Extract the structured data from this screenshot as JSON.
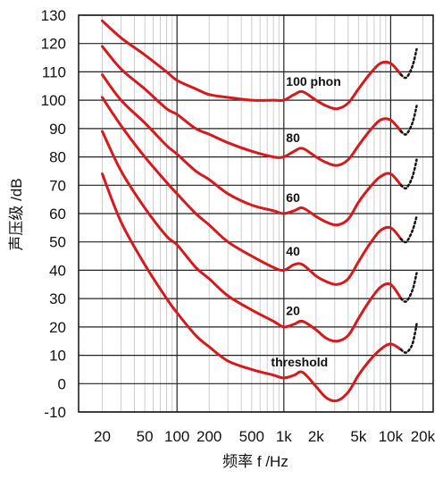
{
  "chart_data": {
    "type": "line",
    "title": "",
    "xlabel": "频率 f /Hz",
    "ylabel": "声压级 /dB",
    "x_scale": "log",
    "xlim": [
      12,
      25000
    ],
    "ylim": [
      -10,
      130
    ],
    "x_ticks": [
      {
        "value": 20,
        "label": "20"
      },
      {
        "value": 50,
        "label": "50"
      },
      {
        "value": 100,
        "label": "100"
      },
      {
        "value": 200,
        "label": "200"
      },
      {
        "value": 500,
        "label": "500"
      },
      {
        "value": 1000,
        "label": "1k"
      },
      {
        "value": 2000,
        "label": "2k"
      },
      {
        "value": 5000,
        "label": "5k"
      },
      {
        "value": 10000,
        "label": "10k"
      },
      {
        "value": 20000,
        "label": "20k"
      }
    ],
    "y_ticks": [
      -10,
      0,
      10,
      20,
      30,
      40,
      50,
      60,
      70,
      80,
      90,
      100,
      110,
      120,
      130
    ],
    "grid": true,
    "line_color": "#d7191c",
    "dotted_color": "#111111",
    "series": [
      {
        "name": "threshold",
        "x": [
          20,
          30,
          50,
          80,
          100,
          150,
          200,
          300,
          500,
          800,
          1000,
          1250,
          1500,
          2000,
          2500,
          3150,
          4000,
          5000,
          6300,
          8000,
          10000,
          12500
        ],
        "y": [
          74,
          57,
          42,
          30,
          25,
          17,
          13,
          8,
          5,
          3,
          2,
          3,
          4,
          -1,
          -5,
          -6,
          -3,
          3,
          8,
          12,
          14,
          12
        ]
      },
      {
        "name": "20",
        "x": [
          20,
          30,
          50,
          80,
          100,
          150,
          200,
          300,
          500,
          800,
          1000,
          1250,
          1500,
          2000,
          2500,
          3150,
          4000,
          5000,
          6300,
          8000,
          10000,
          12500
        ],
        "y": [
          89,
          75,
          62,
          52,
          49,
          41,
          37,
          31,
          26,
          22,
          20,
          21,
          22,
          19,
          16,
          15,
          17,
          23,
          29,
          34,
          35,
          30
        ]
      },
      {
        "name": "40",
        "x": [
          20,
          30,
          50,
          80,
          100,
          150,
          200,
          300,
          500,
          800,
          1000,
          1250,
          1500,
          2000,
          2500,
          3150,
          4000,
          5000,
          6300,
          8000,
          10000,
          12500
        ],
        "y": [
          101,
          91,
          80,
          71,
          67,
          60,
          56,
          50,
          45,
          41,
          40,
          42,
          42,
          38,
          36,
          35,
          37,
          43,
          49,
          54,
          55,
          51
        ]
      },
      {
        "name": "60",
        "x": [
          20,
          30,
          50,
          80,
          100,
          150,
          200,
          300,
          500,
          800,
          1000,
          1250,
          1500,
          2000,
          2500,
          3150,
          4000,
          5000,
          6300,
          8000,
          10000,
          12500
        ],
        "y": [
          109,
          100,
          92,
          84,
          81,
          75,
          72,
          67,
          63,
          61,
          60,
          61,
          62,
          59,
          57,
          56,
          58,
          64,
          69,
          73,
          74,
          70
        ]
      },
      {
        "name": "80",
        "x": [
          20,
          30,
          50,
          80,
          100,
          150,
          200,
          300,
          500,
          800,
          1000,
          1250,
          1500,
          2000,
          2500,
          3150,
          4000,
          5000,
          6300,
          8000,
          10000,
          12500
        ],
        "y": [
          119,
          111,
          104,
          97,
          95,
          90,
          88,
          85,
          82,
          80,
          80,
          82,
          83,
          80,
          78,
          77,
          79,
          84,
          89,
          93,
          93,
          89
        ]
      },
      {
        "name": "100 phon",
        "x": [
          20,
          30,
          50,
          80,
          100,
          150,
          200,
          300,
          500,
          800,
          1000,
          1250,
          1500,
          2000,
          2500,
          3150,
          4000,
          5000,
          6300,
          8000,
          10000,
          12500
        ],
        "y": [
          128,
          122,
          116,
          110,
          107,
          104,
          102,
          101,
          100,
          100,
          100,
          102,
          103,
          100,
          98,
          97,
          99,
          104,
          109,
          113,
          113,
          109
        ]
      }
    ],
    "dotted_extensions": [
      {
        "x": [
          12500,
          14000,
          16000,
          17500
        ],
        "y": [
          12,
          11,
          14,
          21
        ]
      },
      {
        "x": [
          12500,
          14000,
          16000,
          17500
        ],
        "y": [
          30,
          29,
          33,
          39
        ]
      },
      {
        "x": [
          12500,
          14000,
          16000,
          17500
        ],
        "y": [
          51,
          50,
          54,
          59
        ]
      },
      {
        "x": [
          12500,
          14000,
          16000,
          17500
        ],
        "y": [
          70,
          69,
          73,
          79
        ]
      },
      {
        "x": [
          12500,
          14000,
          16000,
          17500
        ],
        "y": [
          89,
          88,
          92,
          98
        ]
      },
      {
        "x": [
          12500,
          14000,
          16000,
          17500
        ],
        "y": [
          109,
          108,
          112,
          118
        ]
      }
    ]
  }
}
